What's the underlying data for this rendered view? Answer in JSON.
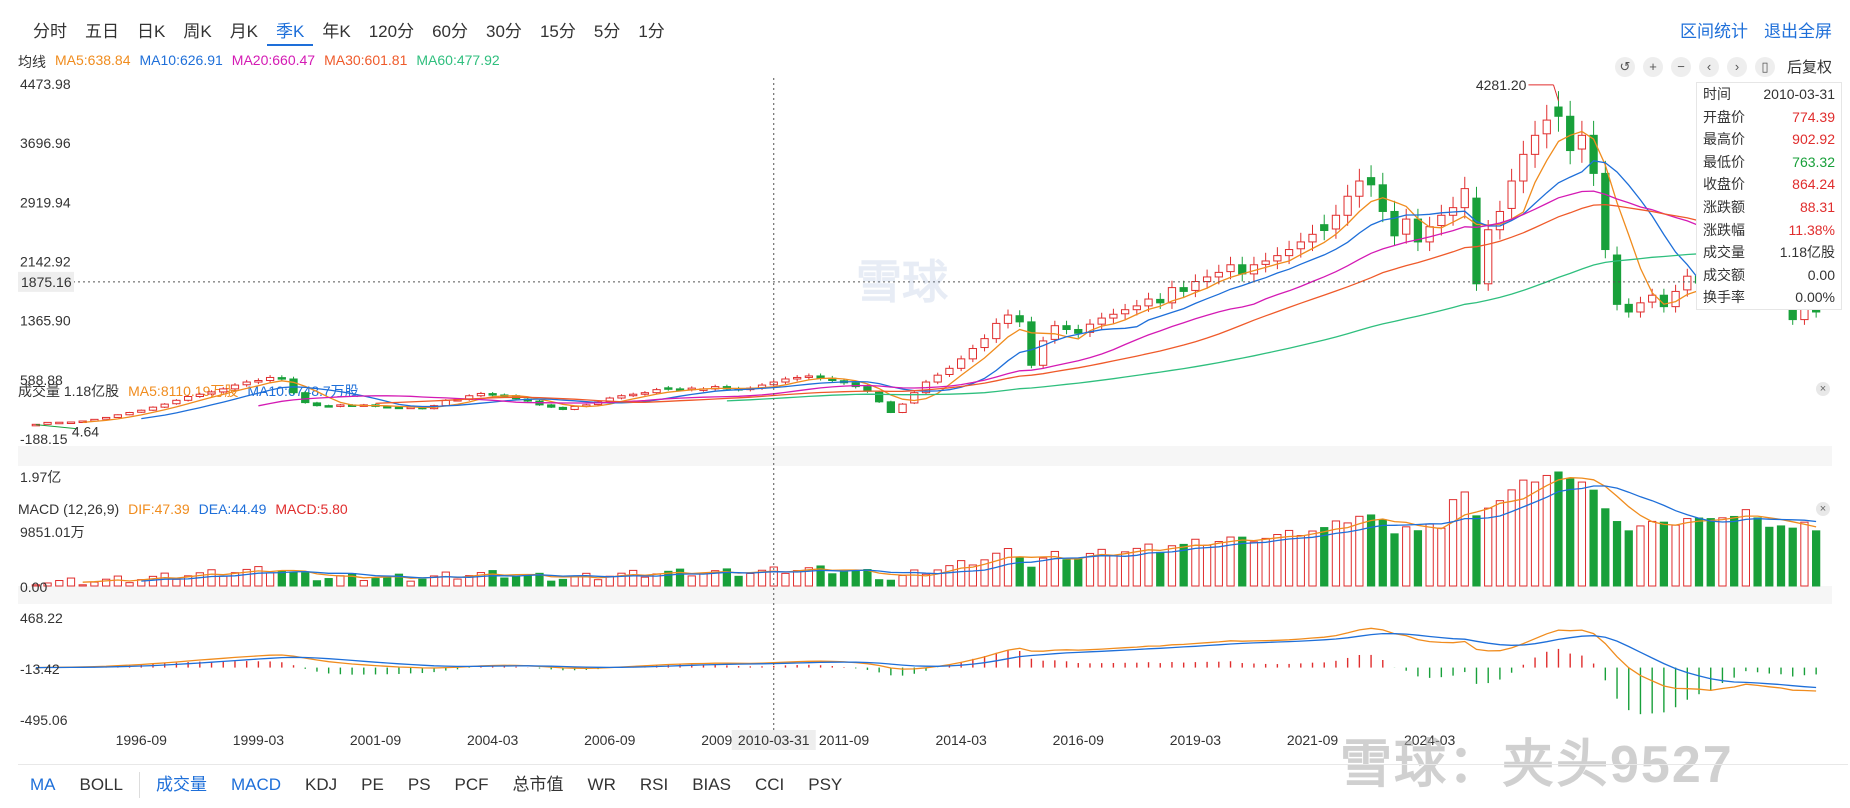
{
  "tabs": {
    "periods": [
      "分时",
      "五日",
      "日K",
      "周K",
      "月K",
      "季K",
      "年K",
      "120分",
      "60分",
      "30分",
      "15分",
      "5分",
      "1分"
    ],
    "active": "季K",
    "links": [
      "区间统计",
      "退出全屏"
    ]
  },
  "price_legend": {
    "title": "均线",
    "items": [
      {
        "text": "MA5:638.84",
        "color": "#f08c1e"
      },
      {
        "text": "MA10:626.91",
        "color": "#1e6fd9"
      },
      {
        "text": "MA20:660.47",
        "color": "#d41ab4"
      },
      {
        "text": "MA30:601.81",
        "color": "#ef5a2a"
      },
      {
        "text": "MA60:477.92",
        "color": "#2fbf7e"
      }
    ]
  },
  "adjust_label": "后复权",
  "volume_legend": {
    "title": "成交量 1.18亿股",
    "items": [
      {
        "text": "MA5:8110.19万股",
        "color": "#f08c1e"
      },
      {
        "text": "MA10:6748.7万股",
        "color": "#1e6fd9"
      }
    ]
  },
  "macd_legend": {
    "title": "MACD (12,26,9)",
    "items": [
      {
        "text": "DIF:47.39",
        "color": "#f08c1e"
      },
      {
        "text": "DEA:44.49",
        "color": "#1e6fd9"
      },
      {
        "text": "MACD:5.80",
        "color": "#e02d2d"
      }
    ]
  },
  "info": {
    "rows": [
      {
        "k": "时间",
        "v": "2010-03-31",
        "c": "#333333"
      },
      {
        "k": "开盘价",
        "v": "774.39",
        "c": "#e02d2d"
      },
      {
        "k": "最高价",
        "v": "902.92",
        "c": "#e02d2d"
      },
      {
        "k": "最低价",
        "v": "763.32",
        "c": "#18a03a"
      },
      {
        "k": "收盘价",
        "v": "864.24",
        "c": "#e02d2d"
      },
      {
        "k": "涨跌额",
        "v": "88.31",
        "c": "#e02d2d"
      },
      {
        "k": "涨跌幅",
        "v": "11.38%",
        "c": "#e02d2d"
      },
      {
        "k": "成交量",
        "v": "1.18亿股",
        "c": "#333333"
      },
      {
        "k": "成交额",
        "v": "0.00",
        "c": "#333333"
      },
      {
        "k": "换手率",
        "v": "0.00%",
        "c": "#333333"
      }
    ]
  },
  "indicators": {
    "items": [
      "MA",
      "BOLL",
      "成交量",
      "MACD",
      "KDJ",
      "PE",
      "PS",
      "PCF",
      "总市值",
      "WR",
      "RSI",
      "BIAS",
      "CCI",
      "PSY"
    ],
    "blue": [
      "MA",
      "成交量",
      "MACD"
    ]
  },
  "watermark": "雪球：夹头9527",
  "center_mark": "雪球",
  "chart_data": {
    "type": "candlestick",
    "price_axis": {
      "ticks": [
        4473.98,
        3696.96,
        2919.94,
        2142.92,
        1365.9,
        588.88,
        -188.15
      ],
      "crosshair_value": "1875.16"
    },
    "annotations": {
      "high_label": "4281.20",
      "low_label": "4.64"
    },
    "volume_axis": {
      "ticks": [
        "1.97亿",
        "9851.01万",
        "0.00"
      ]
    },
    "macd_axis": {
      "ticks": [
        "468.22",
        "-13.42",
        "-495.06"
      ]
    },
    "x_ticks": [
      "1996-09",
      "1999-03",
      "2001-09",
      "2004-03",
      "2006-09",
      "2009-03",
      "2011-09",
      "2014-03",
      "2016-09",
      "2019-03",
      "2021-09",
      "2024-03"
    ],
    "crosshair_date": "2010-03-31",
    "start_quarter": "1994-06",
    "colors": {
      "up": "#e02d2d",
      "down": "#18a03a",
      "dif": "#f08c1e",
      "dea": "#1e6fd9"
    },
    "close": [
      4.64,
      30,
      32,
      35,
      48,
      70,
      95,
      130,
      160,
      190,
      230,
      270,
      320,
      370,
      400,
      430,
      470,
      520,
      560,
      580,
      620,
      600,
      420,
      290,
      250,
      240,
      260,
      250,
      260,
      240,
      230,
      220,
      230,
      210,
      250,
      320,
      330,
      380,
      410,
      390,
      380,
      340,
      310,
      260,
      230,
      200,
      240,
      260,
      300,
      350,
      380,
      400,
      420,
      460,
      470,
      460,
      480,
      470,
      500,
      470,
      460,
      480,
      520,
      560,
      600,
      620,
      640,
      610,
      580,
      550,
      500,
      440,
      300,
      160,
      270,
      420,
      560,
      650,
      740,
      864.24,
      1000,
      1130,
      1330,
      1440,
      1350,
      780,
      1100,
      1300,
      1250,
      1200,
      1320,
      1400,
      1450,
      1510,
      1560,
      1650,
      1600,
      1800,
      1750,
      1880,
      1940,
      2000,
      2100,
      1980,
      2100,
      2150,
      2220,
      2300,
      2400,
      2500,
      2550,
      2750,
      3000,
      3200,
      3150,
      2800,
      2480,
      2700,
      2400,
      2600,
      2750,
      2850,
      3100,
      1850,
      2560,
      2800,
      3200,
      3550,
      3800,
      4000,
      4050,
      3600,
      3800,
      3300,
      2300,
      1580,
      1480,
      1600,
      1700,
      1550,
      1750,
      1950,
      1860,
      1720,
      2100,
      2050,
      2260,
      1750,
      1650,
      1600,
      1380,
      1550,
      1480
    ]
  }
}
